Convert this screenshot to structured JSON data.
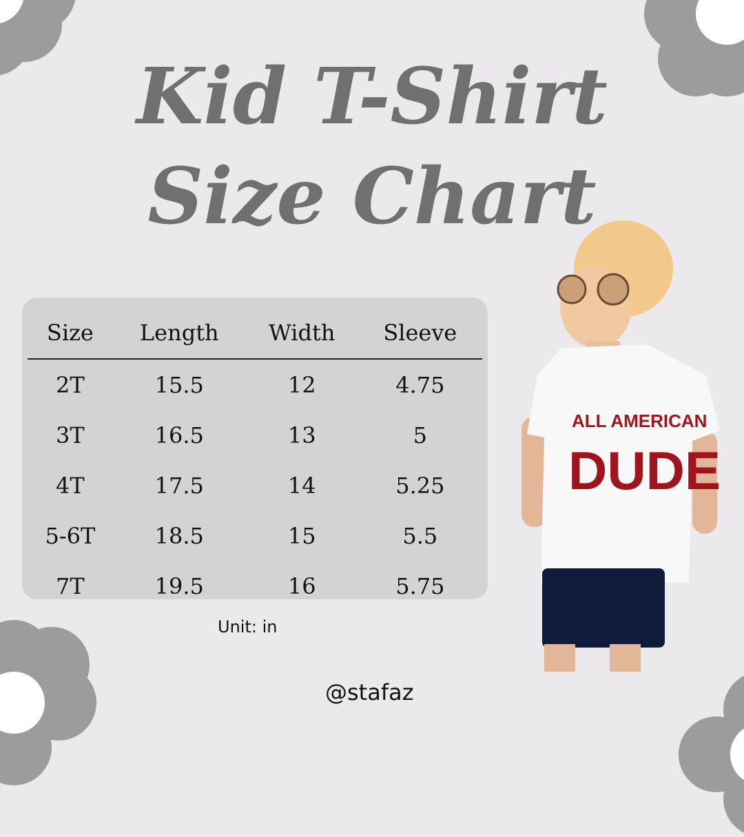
{
  "title": {
    "line1": "Kid T-Shirt",
    "line2": "Size Chart"
  },
  "table": {
    "headers": [
      "Size",
      "Length",
      "Width",
      "Sleeve"
    ],
    "rows": [
      [
        "2T",
        "15.5",
        "12",
        "4.75"
      ],
      [
        "3T",
        "16.5",
        "13",
        "5"
      ],
      [
        "4T",
        "17.5",
        "14",
        "5.25"
      ],
      [
        "5-6T",
        "18.5",
        "15",
        "5.5"
      ],
      [
        "7T",
        "19.5",
        "16",
        "5.75"
      ]
    ]
  },
  "unit_note": "Unit: in",
  "handle": "@stafaz",
  "photo": {
    "shirt_text_line1": "ALL AMERICAN",
    "shirt_text_line2": "DUDE"
  },
  "colors": {
    "background": "#ebe9ec",
    "panel": "#d3d3d3",
    "title": "#707070",
    "flower": "#9a9c9e",
    "shirt_print": "#a0141e"
  }
}
